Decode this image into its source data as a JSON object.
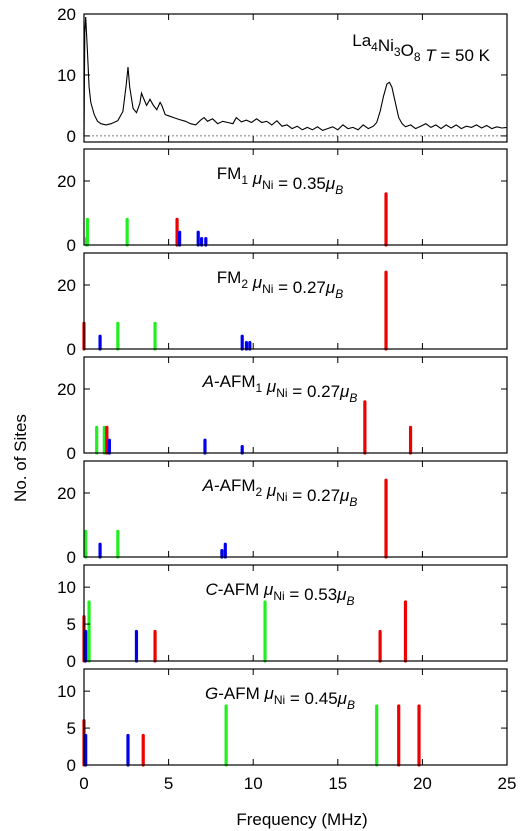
{
  "colors": {
    "red": "#ee0000",
    "green": "#22ee22",
    "blue": "#0000ee",
    "black": "#000000"
  },
  "chart_data": {
    "type": "bar",
    "xlabel": "Frequency (MHz)",
    "ylabel": "No. of Sites",
    "xlim": [
      0,
      25
    ],
    "x_ticks": [
      0,
      5,
      10,
      15,
      20,
      25
    ],
    "panels": [
      {
        "kind": "spectrum",
        "label_main": "La4Ni3O8  T = 50 K",
        "label_parts": [
          "La",
          "4",
          "Ni",
          "3",
          "O",
          "8",
          "T",
          " = 50 K"
        ],
        "ylim": [
          -1,
          20
        ],
        "y_ticks": [
          0,
          10,
          20
        ],
        "baseline": 0,
        "spectrum": [
          [
            0.0,
            0.0
          ],
          [
            0.05,
            17.0
          ],
          [
            0.1,
            19.5
          ],
          [
            0.2,
            14.0
          ],
          [
            0.3,
            8.0
          ],
          [
            0.4,
            5.5
          ],
          [
            0.6,
            3.5
          ],
          [
            0.8,
            2.4
          ],
          [
            1.0,
            2.0
          ],
          [
            1.3,
            1.8
          ],
          [
            1.6,
            2.0
          ],
          [
            2.0,
            2.5
          ],
          [
            2.3,
            4.0
          ],
          [
            2.5,
            8.5
          ],
          [
            2.6,
            11.3
          ],
          [
            2.7,
            8.0
          ],
          [
            2.9,
            4.5
          ],
          [
            3.1,
            3.8
          ],
          [
            3.3,
            5.3
          ],
          [
            3.4,
            7.0
          ],
          [
            3.5,
            6.3
          ],
          [
            3.7,
            5.0
          ],
          [
            3.9,
            6.0
          ],
          [
            4.1,
            5.0
          ],
          [
            4.3,
            4.3
          ],
          [
            4.5,
            5.5
          ],
          [
            4.6,
            5.0
          ],
          [
            4.8,
            3.5
          ],
          [
            5.0,
            3.3
          ],
          [
            5.3,
            3.0
          ],
          [
            5.6,
            2.7
          ],
          [
            6.0,
            2.4
          ],
          [
            6.3,
            2.0
          ],
          [
            6.6,
            1.8
          ],
          [
            6.9,
            2.6
          ],
          [
            7.1,
            3.0
          ],
          [
            7.3,
            2.4
          ],
          [
            7.6,
            2.8
          ],
          [
            7.9,
            2.0
          ],
          [
            8.2,
            2.4
          ],
          [
            8.5,
            2.2
          ],
          [
            8.8,
            2.0
          ],
          [
            9.0,
            3.0
          ],
          [
            9.3,
            2.3
          ],
          [
            9.6,
            2.6
          ],
          [
            9.9,
            2.2
          ],
          [
            10.2,
            2.8
          ],
          [
            10.5,
            2.2
          ],
          [
            10.8,
            2.4
          ],
          [
            11.1,
            1.8
          ],
          [
            11.4,
            2.5
          ],
          [
            11.7,
            1.6
          ],
          [
            12.0,
            1.8
          ],
          [
            12.3,
            1.2
          ],
          [
            12.6,
            1.6
          ],
          [
            12.9,
            1.0
          ],
          [
            13.2,
            1.4
          ],
          [
            13.5,
            1.0
          ],
          [
            13.8,
            1.5
          ],
          [
            14.1,
            0.9
          ],
          [
            14.4,
            1.2
          ],
          [
            14.7,
            1.5
          ],
          [
            15.0,
            1.0
          ],
          [
            15.3,
            1.8
          ],
          [
            15.6,
            1.2
          ],
          [
            15.9,
            1.4
          ],
          [
            16.2,
            1.0
          ],
          [
            16.5,
            1.8
          ],
          [
            16.8,
            1.2
          ],
          [
            17.1,
            1.6
          ],
          [
            17.3,
            2.2
          ],
          [
            17.5,
            4.0
          ],
          [
            17.7,
            6.5
          ],
          [
            17.9,
            8.5
          ],
          [
            18.05,
            8.8
          ],
          [
            18.2,
            8.0
          ],
          [
            18.4,
            5.5
          ],
          [
            18.6,
            3.0
          ],
          [
            18.8,
            2.0
          ],
          [
            19.0,
            1.5
          ],
          [
            19.3,
            1.8
          ],
          [
            19.6,
            1.2
          ],
          [
            19.9,
            1.6
          ],
          [
            20.2,
            2.0
          ],
          [
            20.5,
            1.4
          ],
          [
            20.8,
            1.8
          ],
          [
            21.1,
            1.2
          ],
          [
            21.4,
            1.8
          ],
          [
            21.7,
            1.3
          ],
          [
            22.0,
            1.8
          ],
          [
            22.3,
            1.2
          ],
          [
            22.6,
            1.6
          ],
          [
            22.9,
            1.4
          ],
          [
            23.2,
            1.8
          ],
          [
            23.5,
            1.3
          ],
          [
            23.8,
            1.7
          ],
          [
            24.1,
            1.2
          ],
          [
            24.4,
            1.5
          ],
          [
            24.7,
            1.3
          ],
          [
            25.0,
            1.4
          ]
        ]
      },
      {
        "kind": "sites",
        "label_parts": [
          "FM",
          "1",
          "μ",
          "Ni",
          " = 0.35",
          "μ",
          "B"
        ],
        "ylim": [
          0,
          30
        ],
        "y_ticks": [
          0,
          20
        ],
        "bars": [
          {
            "x": 0.15,
            "y": 2,
            "c": "green"
          },
          {
            "x": 0.2,
            "y": 8,
            "c": "green"
          },
          {
            "x": 2.55,
            "y": 8,
            "c": "green"
          },
          {
            "x": 5.5,
            "y": 8,
            "c": "red"
          },
          {
            "x": 5.65,
            "y": 4,
            "c": "blue"
          },
          {
            "x": 6.75,
            "y": 4,
            "c": "blue"
          },
          {
            "x": 6.95,
            "y": 2,
            "c": "blue"
          },
          {
            "x": 7.2,
            "y": 2,
            "c": "blue"
          },
          {
            "x": 17.85,
            "y": 16,
            "c": "red"
          }
        ]
      },
      {
        "kind": "sites",
        "label_parts": [
          "FM",
          "2",
          "μ",
          "Ni",
          " = 0.27",
          "μ",
          "B"
        ],
        "ylim": [
          0,
          30
        ],
        "y_ticks": [
          0,
          20
        ],
        "bars": [
          {
            "x": 0.0,
            "y": 8,
            "c": "red"
          },
          {
            "x": 0.95,
            "y": 4,
            "c": "blue"
          },
          {
            "x": 2.0,
            "y": 8,
            "c": "green"
          },
          {
            "x": 4.2,
            "y": 8,
            "c": "green"
          },
          {
            "x": 9.35,
            "y": 4,
            "c": "blue"
          },
          {
            "x": 9.6,
            "y": 2,
            "c": "blue"
          },
          {
            "x": 9.8,
            "y": 2,
            "c": "blue"
          },
          {
            "x": 17.85,
            "y": 24,
            "c": "red"
          }
        ]
      },
      {
        "kind": "sites",
        "label_parts": [
          "A",
          "-AFM",
          "1",
          "μ",
          "Ni",
          " = 0.27",
          "μ",
          "B"
        ],
        "ylim": [
          0,
          30
        ],
        "y_ticks": [
          0,
          20
        ],
        "bars": [
          {
            "x": 0.75,
            "y": 8,
            "c": "green"
          },
          {
            "x": 1.2,
            "y": 8,
            "c": "green"
          },
          {
            "x": 1.35,
            "y": 8,
            "c": "red"
          },
          {
            "x": 1.5,
            "y": 4,
            "c": "blue"
          },
          {
            "x": 7.15,
            "y": 4,
            "c": "blue"
          },
          {
            "x": 9.35,
            "y": 2,
            "c": "blue"
          },
          {
            "x": 16.6,
            "y": 16,
            "c": "red"
          },
          {
            "x": 19.3,
            "y": 8,
            "c": "red"
          }
        ]
      },
      {
        "kind": "sites",
        "label_parts": [
          "A",
          "-AFM",
          "2",
          "μ",
          "Ni",
          " = 0.27",
          "μ",
          "B"
        ],
        "ylim": [
          0,
          30
        ],
        "y_ticks": [
          0,
          20
        ],
        "bars": [
          {
            "x": 0.1,
            "y": 8,
            "c": "green"
          },
          {
            "x": 0.95,
            "y": 4,
            "c": "blue"
          },
          {
            "x": 2.0,
            "y": 8,
            "c": "green"
          },
          {
            "x": 8.15,
            "y": 2,
            "c": "blue"
          },
          {
            "x": 8.35,
            "y": 4,
            "c": "blue"
          },
          {
            "x": 17.85,
            "y": 24,
            "c": "red"
          }
        ]
      },
      {
        "kind": "sites",
        "label_parts": [
          "C",
          "-AFM  ",
          "μ",
          "Ni",
          " = 0.53",
          "μ",
          "B"
        ],
        "ylim": [
          0,
          13
        ],
        "y_ticks": [
          0,
          5,
          10
        ],
        "bars": [
          {
            "x": 0.0,
            "y": 6,
            "c": "red"
          },
          {
            "x": 0.1,
            "y": 4,
            "c": "blue"
          },
          {
            "x": 0.3,
            "y": 8,
            "c": "green"
          },
          {
            "x": 3.1,
            "y": 4,
            "c": "blue"
          },
          {
            "x": 4.2,
            "y": 4,
            "c": "red"
          },
          {
            "x": 10.7,
            "y": 8,
            "c": "green"
          },
          {
            "x": 17.5,
            "y": 4,
            "c": "red"
          },
          {
            "x": 19.0,
            "y": 8,
            "c": "red"
          }
        ]
      },
      {
        "kind": "sites",
        "label_parts": [
          "G",
          "-AFM  ",
          "μ",
          "Ni",
          " = 0.45",
          "μ",
          "B"
        ],
        "ylim": [
          0,
          13
        ],
        "y_ticks": [
          0,
          5,
          10
        ],
        "bars": [
          {
            "x": 0.0,
            "y": 6,
            "c": "red"
          },
          {
            "x": 0.1,
            "y": 4,
            "c": "blue"
          },
          {
            "x": 2.6,
            "y": 4,
            "c": "blue"
          },
          {
            "x": 3.5,
            "y": 4,
            "c": "red"
          },
          {
            "x": 8.4,
            "y": 8,
            "c": "green"
          },
          {
            "x": 17.3,
            "y": 8,
            "c": "green"
          },
          {
            "x": 18.6,
            "y": 8,
            "c": "red"
          },
          {
            "x": 19.8,
            "y": 8,
            "c": "red"
          }
        ]
      }
    ]
  }
}
